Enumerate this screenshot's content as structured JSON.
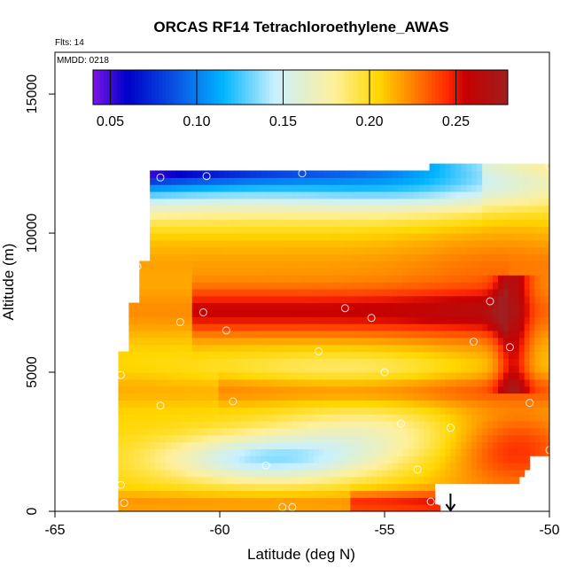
{
  "chart_data": {
    "type": "heatmap",
    "title": "ORCAS RF14 Tetrachloroethylene_AWAS",
    "subtitle_flts": "Flts: 14",
    "subtitle_mmdd": "MMDD: 0218",
    "xlabel": "Latitude (deg N)",
    "ylabel": "Altitude (m)",
    "xlim": [
      -65,
      -50
    ],
    "ylim": [
      0,
      16500
    ],
    "xticks": [
      -65,
      -60,
      -55,
      -50
    ],
    "xtick_labels": [
      "-65",
      "-60",
      "-55",
      "-50"
    ],
    "yticks": [
      0,
      5000,
      10000,
      15000
    ],
    "ytick_labels": [
      "0",
      "5000",
      "10000",
      "15000"
    ],
    "colorbar": {
      "range": [
        0.04,
        0.28
      ],
      "ticks": [
        0.05,
        0.1,
        0.15,
        0.2,
        0.25
      ],
      "tick_labels": [
        "0.05",
        "0.10",
        "0.15",
        "0.20",
        "0.25"
      ],
      "colors": [
        "#7b16e6",
        "#0000c8",
        "#0a5ae6",
        "#00b4ff",
        "#c8f0ff",
        "#fff09a",
        "#ffd700",
        "#ff9800",
        "#ff2a00",
        "#c80000",
        "#a01e1e"
      ],
      "color_stops": [
        0.04,
        0.06,
        0.09,
        0.115,
        0.145,
        0.18,
        0.205,
        0.22,
        0.245,
        0.255,
        0.28
      ]
    },
    "samples": [
      {
        "lat": -61.8,
        "alt": 12000
      },
      {
        "lat": -60.4,
        "alt": 12050
      },
      {
        "lat": -57.5,
        "alt": 12150
      },
      {
        "lat": -50.0,
        "alt": 12400
      },
      {
        "lat": -62.5,
        "alt": 8800
      },
      {
        "lat": -60.5,
        "alt": 7150
      },
      {
        "lat": -61.2,
        "alt": 6800
      },
      {
        "lat": -59.8,
        "alt": 6500
      },
      {
        "lat": -56.2,
        "alt": 7300
      },
      {
        "lat": -55.4,
        "alt": 6950
      },
      {
        "lat": -51.8,
        "alt": 7550
      },
      {
        "lat": -57.0,
        "alt": 5750
      },
      {
        "lat": -52.3,
        "alt": 6100
      },
      {
        "lat": -51.2,
        "alt": 5900
      },
      {
        "lat": -55.0,
        "alt": 5000
      },
      {
        "lat": -63.0,
        "alt": 4900
      },
      {
        "lat": -61.8,
        "alt": 3800
      },
      {
        "lat": -59.6,
        "alt": 3950
      },
      {
        "lat": -54.5,
        "alt": 3150
      },
      {
        "lat": -53.0,
        "alt": 3000
      },
      {
        "lat": -50.6,
        "alt": 3900
      },
      {
        "lat": -50.0,
        "alt": 2200
      },
      {
        "lat": -58.6,
        "alt": 1650
      },
      {
        "lat": -54.0,
        "alt": 1500
      },
      {
        "lat": -63.0,
        "alt": 950
      },
      {
        "lat": -62.9,
        "alt": 300
      },
      {
        "lat": -58.1,
        "alt": 150
      },
      {
        "lat": -57.8,
        "alt": 150
      },
      {
        "lat": -53.6,
        "alt": 350
      },
      {
        "lat": -53.3,
        "alt": 350
      }
    ],
    "ground_marker": {
      "lat": -53.0,
      "alt": 0,
      "symbol": "arrow-down"
    }
  }
}
